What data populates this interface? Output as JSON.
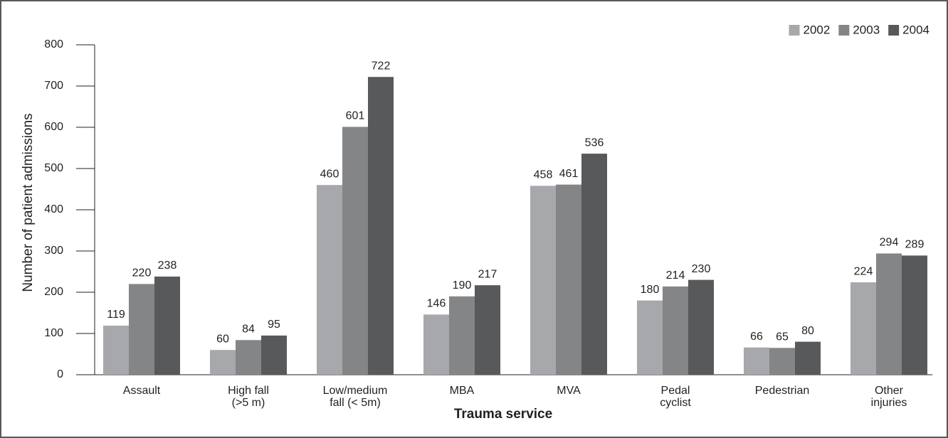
{
  "chart_data": {
    "type": "bar",
    "xlabel": "Trauma service",
    "ylabel": "Number of patient admissions",
    "categories": [
      [
        "Assault"
      ],
      [
        "High fall",
        "(>5 m)"
      ],
      [
        "Low/medium",
        "fall (< 5m)"
      ],
      [
        "MBA"
      ],
      [
        "MVA"
      ],
      [
        "Pedal",
        "cyclist"
      ],
      [
        "Pedestrian"
      ],
      [
        "Other",
        "injuries"
      ]
    ],
    "series": [
      {
        "name": "2002",
        "color": "#a7a8ab",
        "values": [
          119,
          60,
          460,
          146,
          458,
          180,
          66,
          224
        ]
      },
      {
        "name": "2003",
        "color": "#848587",
        "values": [
          220,
          84,
          601,
          190,
          461,
          214,
          65,
          294
        ]
      },
      {
        "name": "2004",
        "color": "#58595b",
        "values": [
          238,
          95,
          722,
          217,
          536,
          230,
          80,
          289
        ]
      }
    ],
    "ylim": [
      0,
      800
    ],
    "yticks": [
      0,
      100,
      200,
      300,
      400,
      500,
      600,
      700,
      800
    ],
    "legend": "top-right"
  }
}
